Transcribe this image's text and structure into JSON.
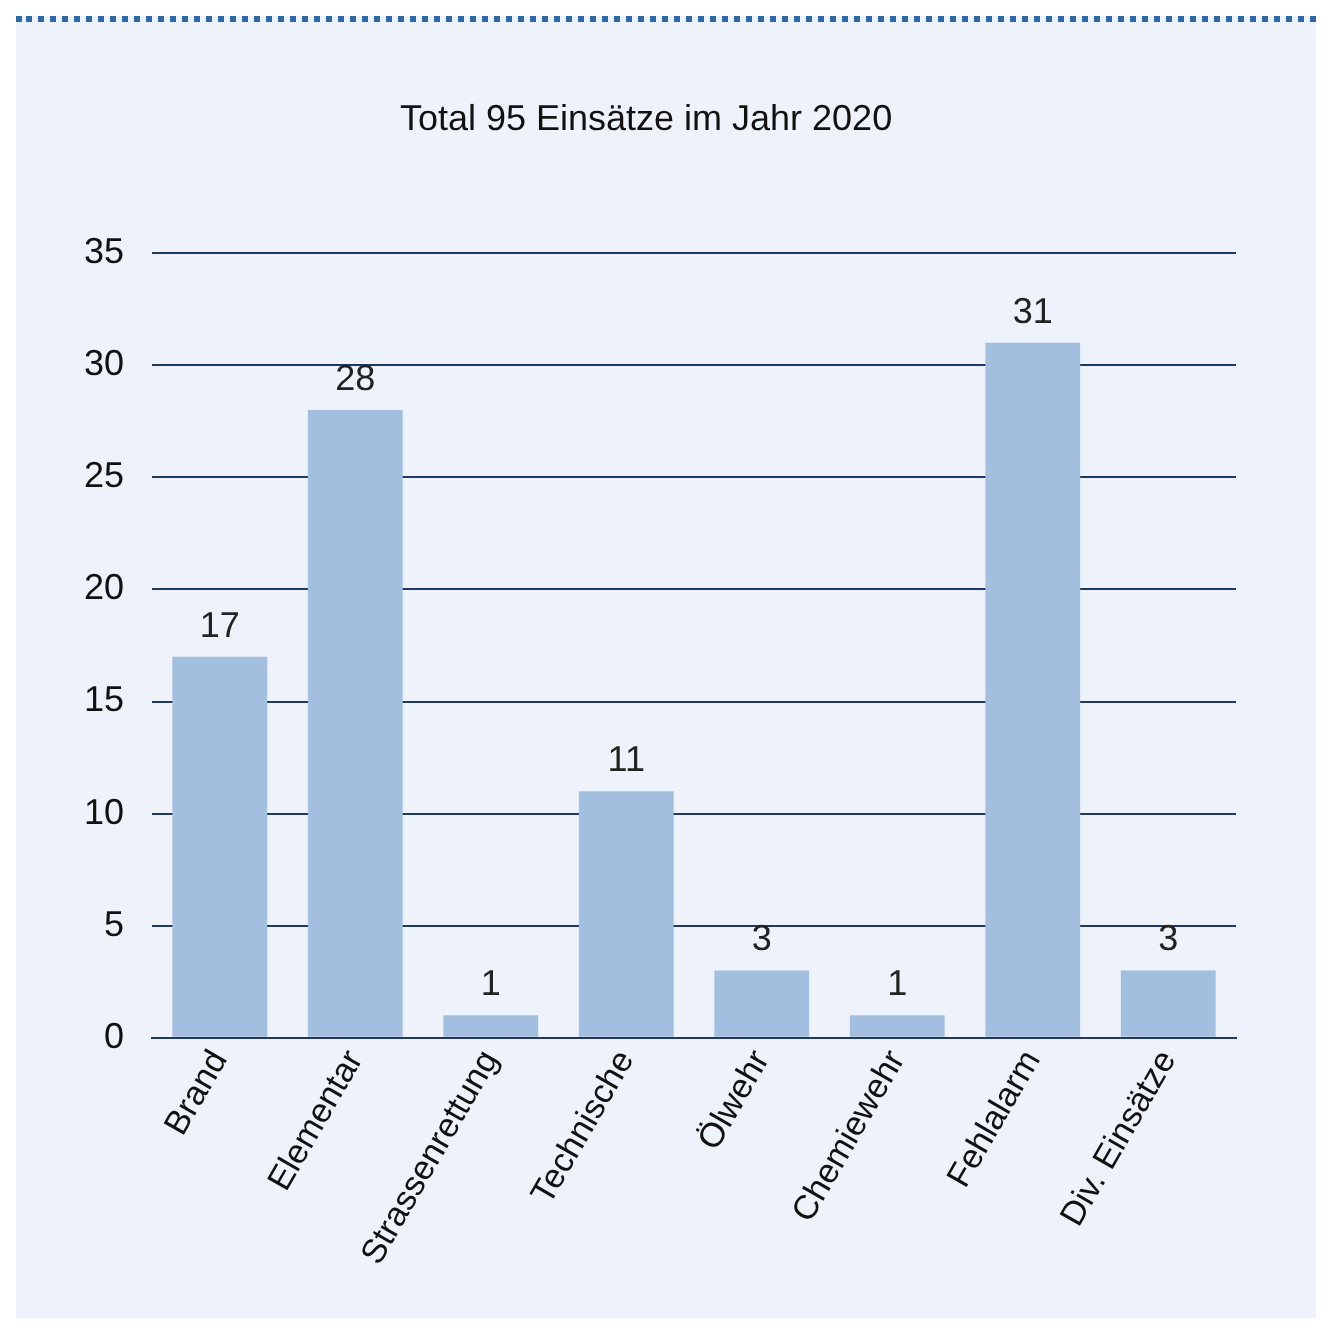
{
  "chart_data": {
    "type": "bar",
    "title": "Total 95 Einsätze im Jahr 2020",
    "categories": [
      "Brand",
      "Elementar",
      "Strassenrettung",
      "Technische",
      "Ölwehr",
      "Chemiewehr",
      "Fehlalarm",
      "Div. Einsätze"
    ],
    "values": [
      17,
      28,
      1,
      11,
      3,
      1,
      31,
      3
    ],
    "color": "#a3bfe0",
    "ylim": [
      0,
      35
    ],
    "yticks": [
      0,
      5,
      10,
      15,
      20,
      25,
      30,
      35
    ],
    "grid": "y",
    "data_labels": true,
    "legend": false
  }
}
